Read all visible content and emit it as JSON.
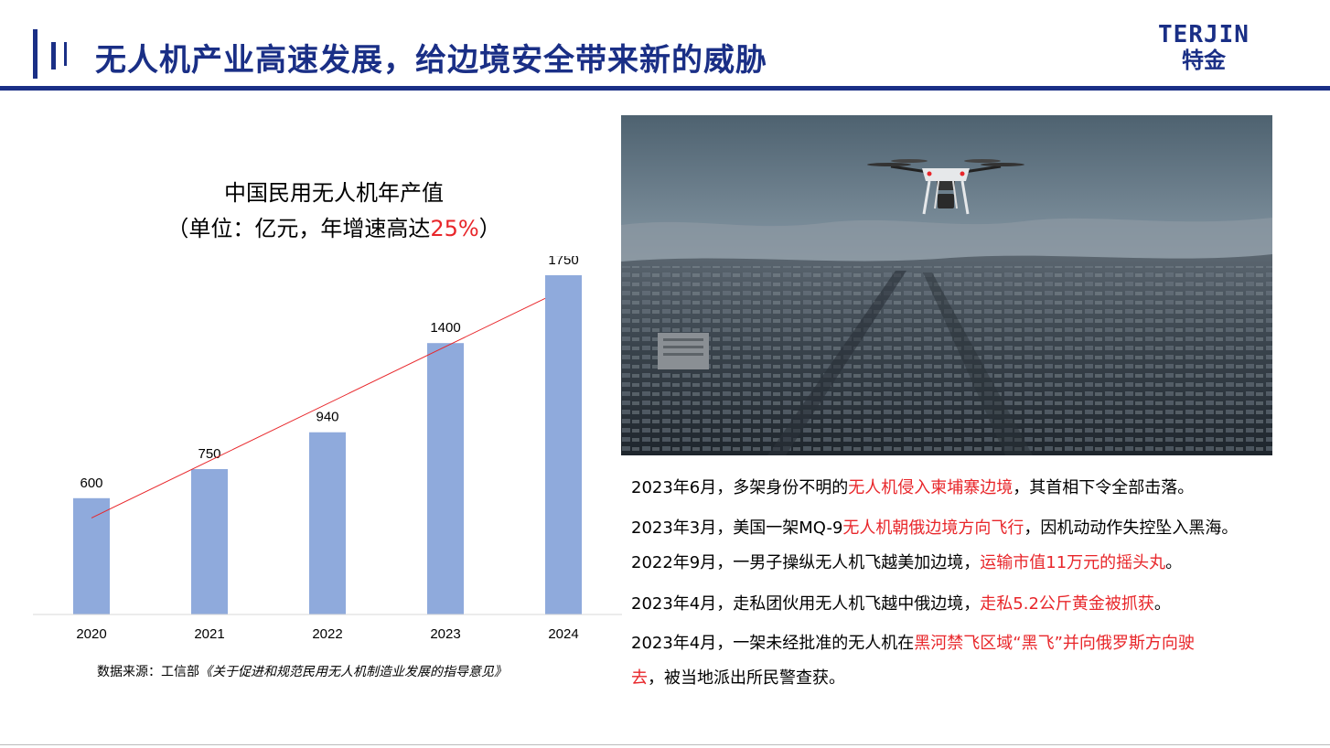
{
  "header": {
    "title": "无人机产业高速发展，给边境安全带来新的威胁",
    "logo_en": "TERJIN",
    "logo_cn": "特金"
  },
  "chart_title": {
    "line1": "中国民用无人机年产值",
    "line2_prefix": "（单位：亿元，年增速高达",
    "line2_highlight": "25%",
    "line2_suffix": "）"
  },
  "chart_data": {
    "type": "bar",
    "title": "中国民用无人机年产值",
    "subtitle": "（单位：亿元，年增速高达25%）",
    "categories": [
      "2020",
      "2021",
      "2022",
      "2023",
      "2024"
    ],
    "values": [
      600,
      750,
      940,
      1400,
      1750
    ],
    "data_labels": [
      "600",
      "750",
      "940",
      "1400",
      "1750"
    ],
    "ylim": [
      0,
      2000
    ],
    "grid": false,
    "trendline": true,
    "colors": {
      "bar": "#8faadc",
      "trendline": "#e8262a",
      "axis": "#d9d9d9"
    }
  },
  "source": {
    "prefix": "数据来源：工信部",
    "document": "《关于促进和规范民用无人机制造业发展的指导意见》"
  },
  "photo": {
    "icon": "drone-over-city-photo"
  },
  "events": [
    {
      "pre": "2023年6月，多架身份不明的",
      "red": "无人机侵入柬埔寨边境",
      "post": "，其首相下令全部击落。"
    },
    {
      "pre": "2023年3月，美国一架MQ-9",
      "red": "无人机朝俄边境方向飞行",
      "post": "，因机动动作失控坠入黑海。"
    },
    {
      "pre": "2022年9月，一男子操纵无人机飞越美加边境，",
      "red": "运输市值11万元的摇头丸",
      "post": "。"
    },
    {
      "pre": "2023年4月，走私团伙用无人机飞越中俄边境，",
      "red": "走私5.2公斤黄金被抓获",
      "post": "。"
    },
    {
      "pre": "2023年4月，一架未经批准的无人机在",
      "red": "黑河禁飞区域“黑飞”并向俄罗斯方向驶",
      "post": ""
    },
    {
      "pre": "",
      "red": "去",
      "post": "，被当地派出所民警查获。"
    }
  ],
  "colors": {
    "brand": "#1a2f86",
    "accent_red": "#e8262a",
    "bar": "#8faadc"
  }
}
